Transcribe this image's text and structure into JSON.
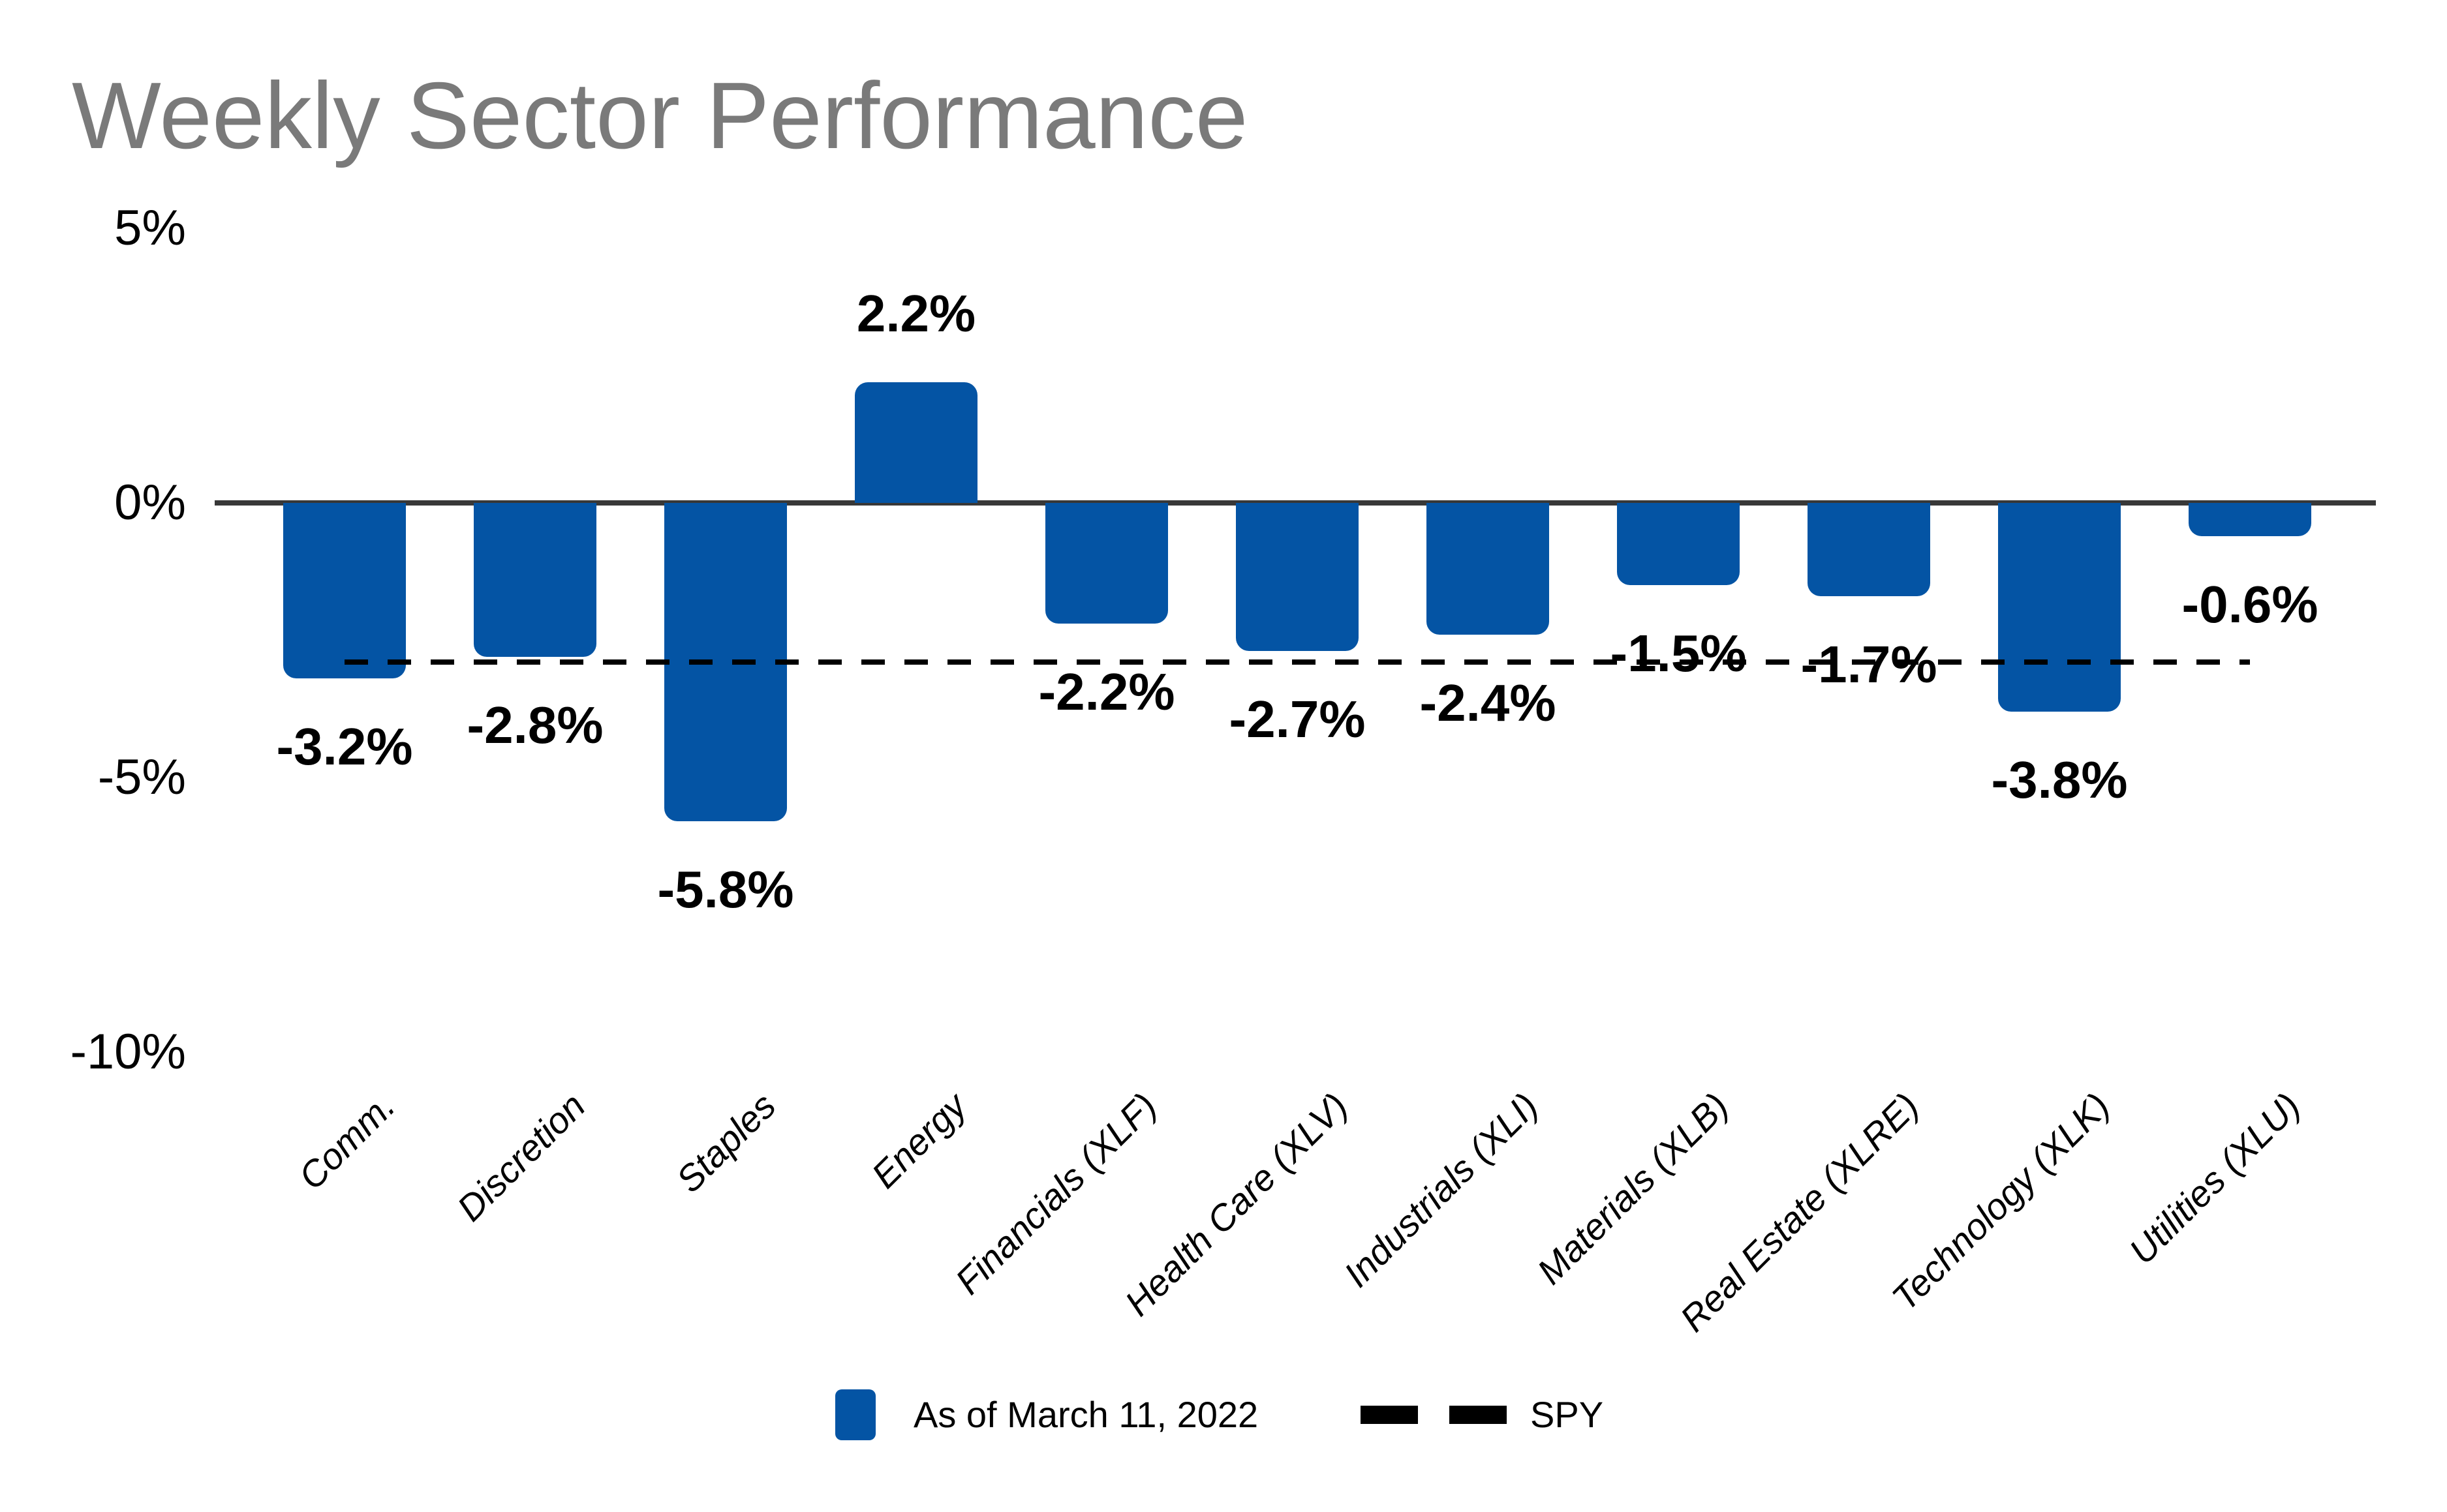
{
  "title": "Weekly Sector Performance",
  "chart_data": {
    "type": "bar",
    "title": "Weekly Sector Performance",
    "categories": [
      "Comm.",
      "Discretion",
      "Staples",
      "Energy",
      "Financials (XLF)",
      "Health Care (XLV)",
      "Industrials (XLI)",
      "Materials (XLB)",
      "Real Estate (XLRE)",
      "Technology (XLK)",
      "Utilities (XLU)"
    ],
    "values": [
      -3.2,
      -2.8,
      -5.8,
      2.2,
      -2.2,
      -2.7,
      -2.4,
      -1.5,
      -1.7,
      -3.8,
      -0.6
    ],
    "value_labels": [
      "-3.2%",
      "-2.8%",
      "-5.8%",
      "2.2%",
      "-2.2%",
      "-2.7%",
      "-2.4%",
      "-1.5%",
      "-1.7%",
      "-3.8%",
      "-0.6%"
    ],
    "xlabel": "",
    "ylabel": "",
    "yticks": [
      {
        "label": "5%",
        "value": 5
      },
      {
        "label": "0%",
        "value": 0
      },
      {
        "label": "-5%",
        "value": -5
      },
      {
        "label": "-10%",
        "value": -10
      }
    ],
    "ylim": [
      -10.5,
      5.5
    ],
    "grid": false,
    "legend_position": "bottom-center",
    "spy_line": {
      "label": "SPY",
      "value": -2.9,
      "style": "dashed",
      "color": "#000000"
    },
    "bar_color": "#0454A4",
    "title_color": "#7a7a7a",
    "axis_line_color": "#383838"
  },
  "legend": {
    "series_label": "As of March 11, 2022",
    "spy_label": "SPY"
  }
}
